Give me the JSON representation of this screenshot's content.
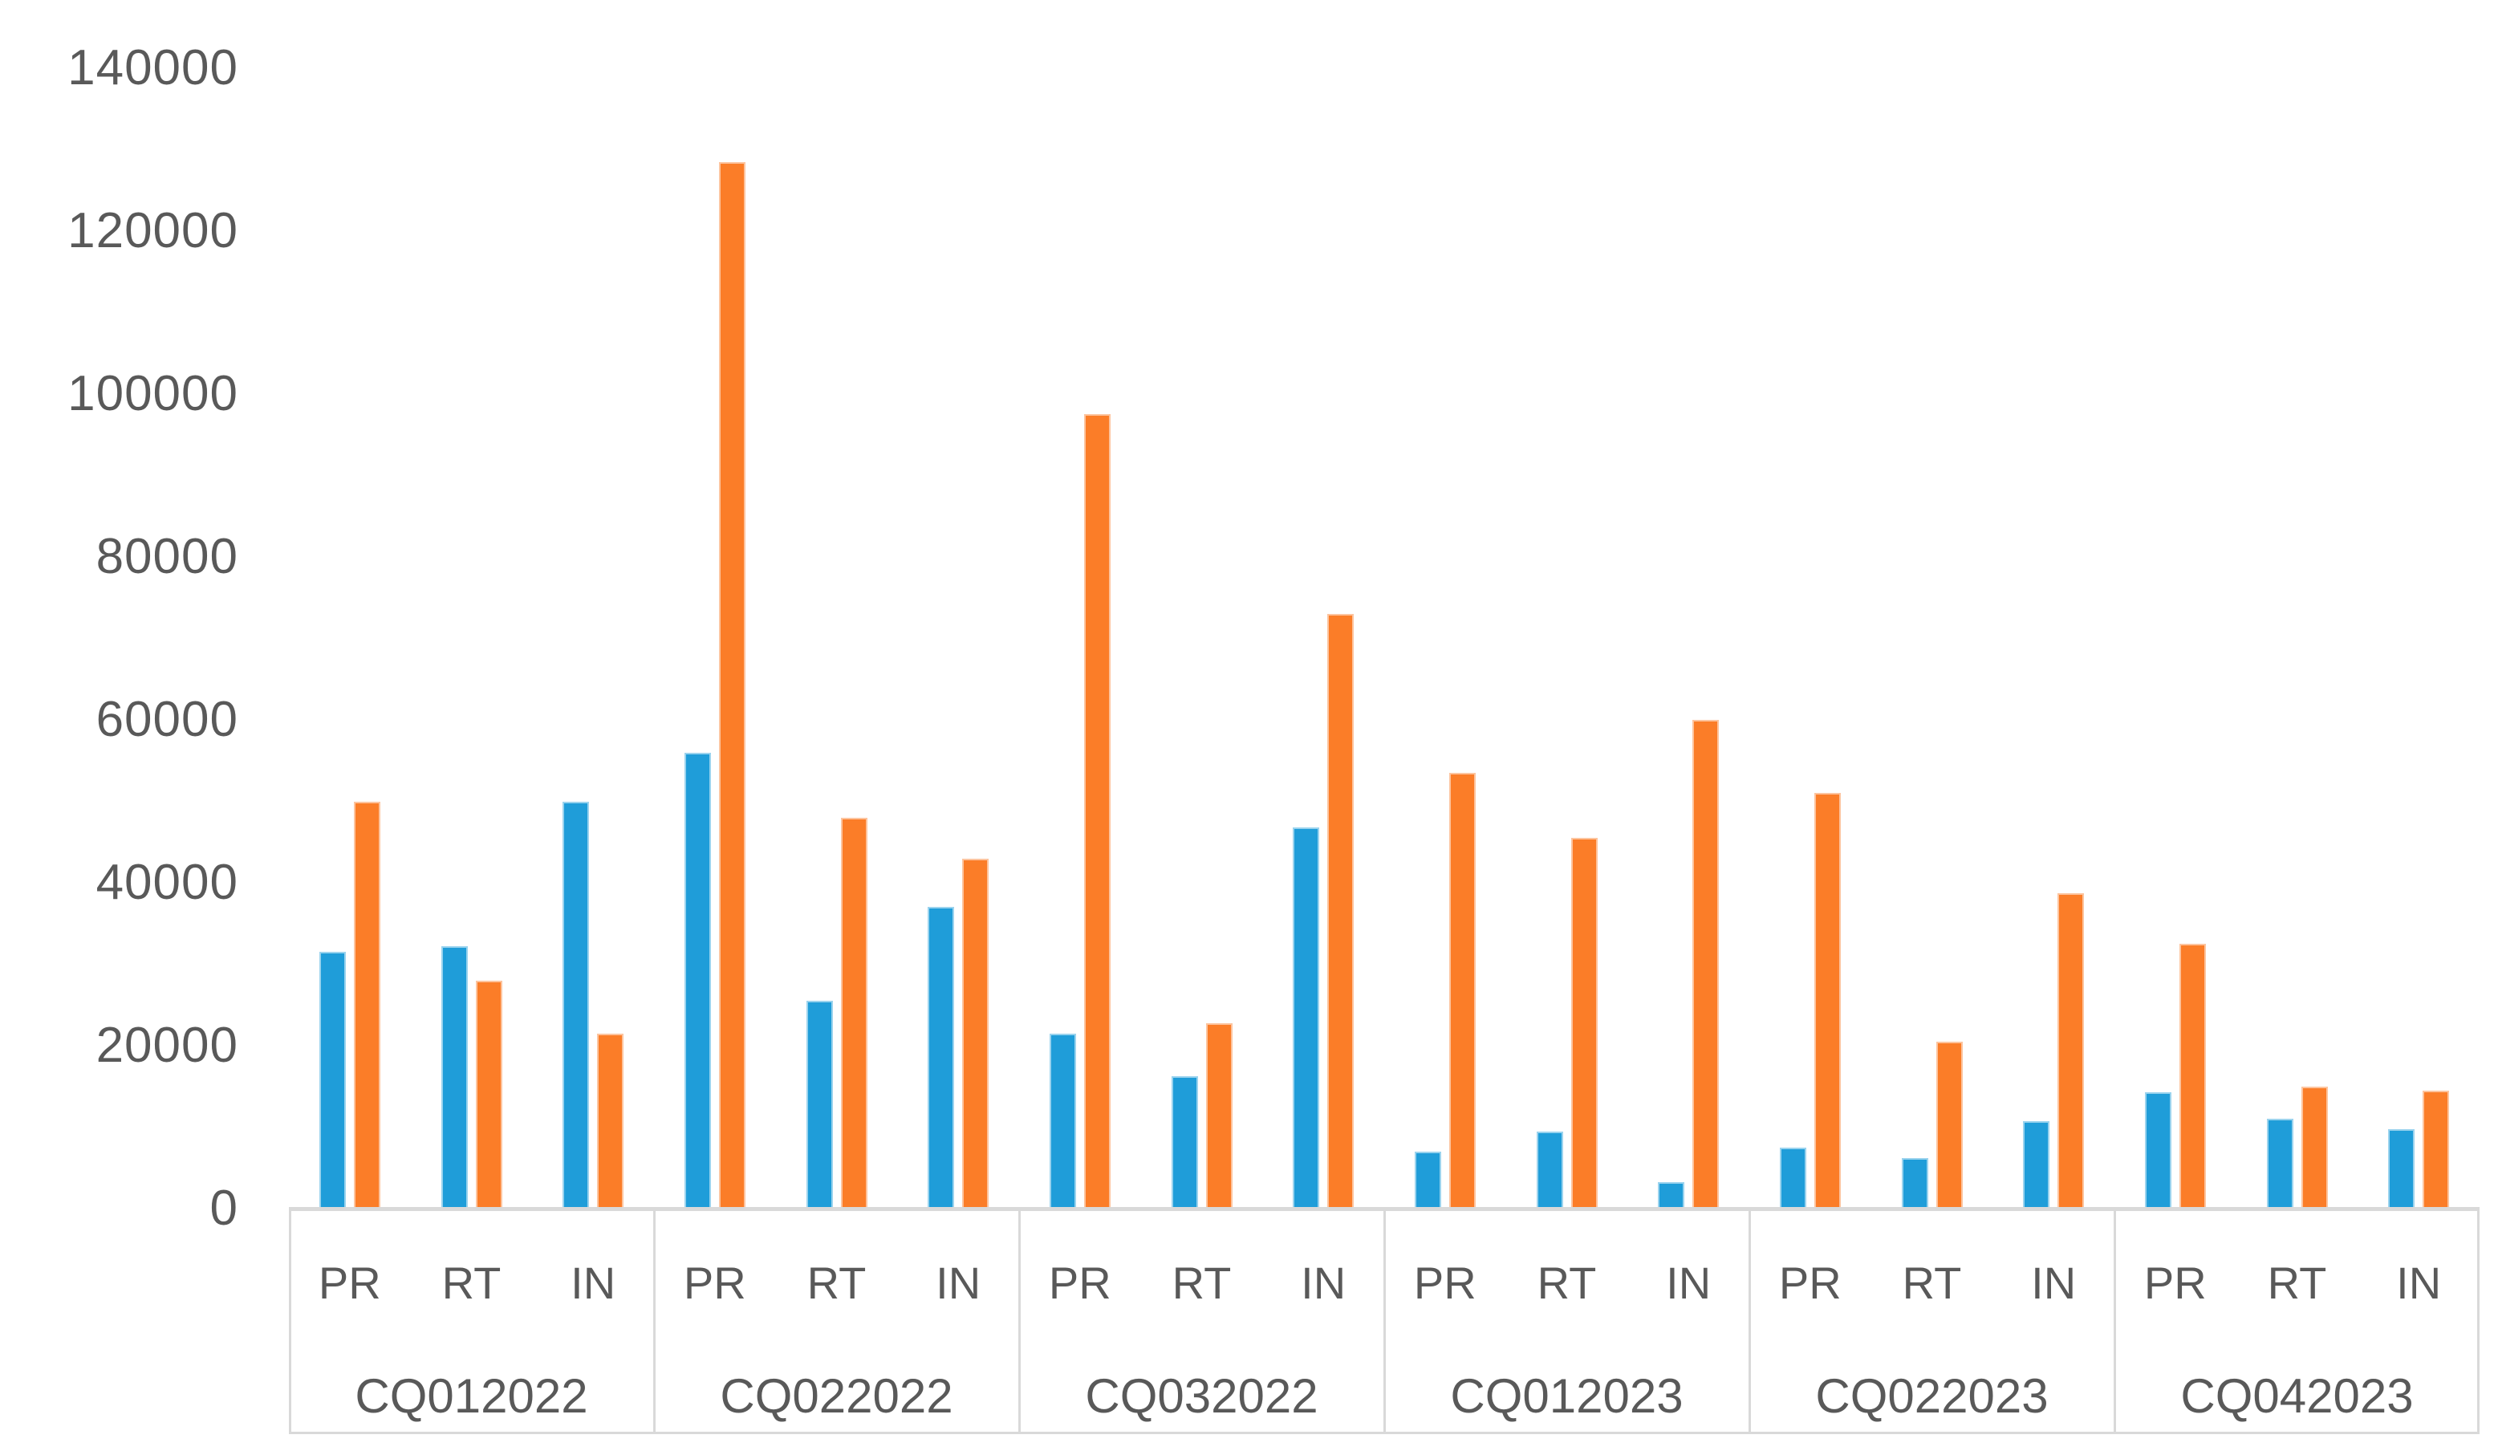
{
  "chart_data": {
    "type": "bar",
    "title": "",
    "legend": false,
    "grid": false,
    "y_axis": {
      "min": 0,
      "max": 140000,
      "tick_step": 20000,
      "tick_labels": [
        "0",
        "20000",
        "40000",
        "60000",
        "80000",
        "100000",
        "120000",
        "140000"
      ]
    },
    "categories_sub": [
      "PR",
      "RT",
      "IN"
    ],
    "categories_groups": [
      "CQ012022",
      "CQ022022",
      "CQ032022",
      "CQ012023",
      "CQ022023",
      "CQ042023"
    ],
    "series": [
      {
        "key": "blue",
        "color": "#1F9DD9",
        "values": [
          [
            31500,
            32250,
            50000
          ],
          [
            56000,
            25500,
            37000
          ],
          [
            21500,
            16250,
            46750
          ],
          [
            7000,
            9500,
            3250
          ],
          [
            7500,
            6250,
            10750
          ],
          [
            14250,
            11000,
            9750
          ]
        ]
      },
      {
        "key": "orange",
        "color": "#FB7D28",
        "values": [
          [
            50000,
            28000,
            21500
          ],
          [
            128500,
            48000,
            43000
          ],
          [
            97500,
            22750,
            73000
          ],
          [
            53500,
            45500,
            60000
          ],
          [
            51000,
            20500,
            38750
          ],
          [
            32500,
            15000,
            14500
          ]
        ]
      }
    ],
    "axis_text_color": "#595959",
    "axis_line_color": "#D9D9D9"
  }
}
